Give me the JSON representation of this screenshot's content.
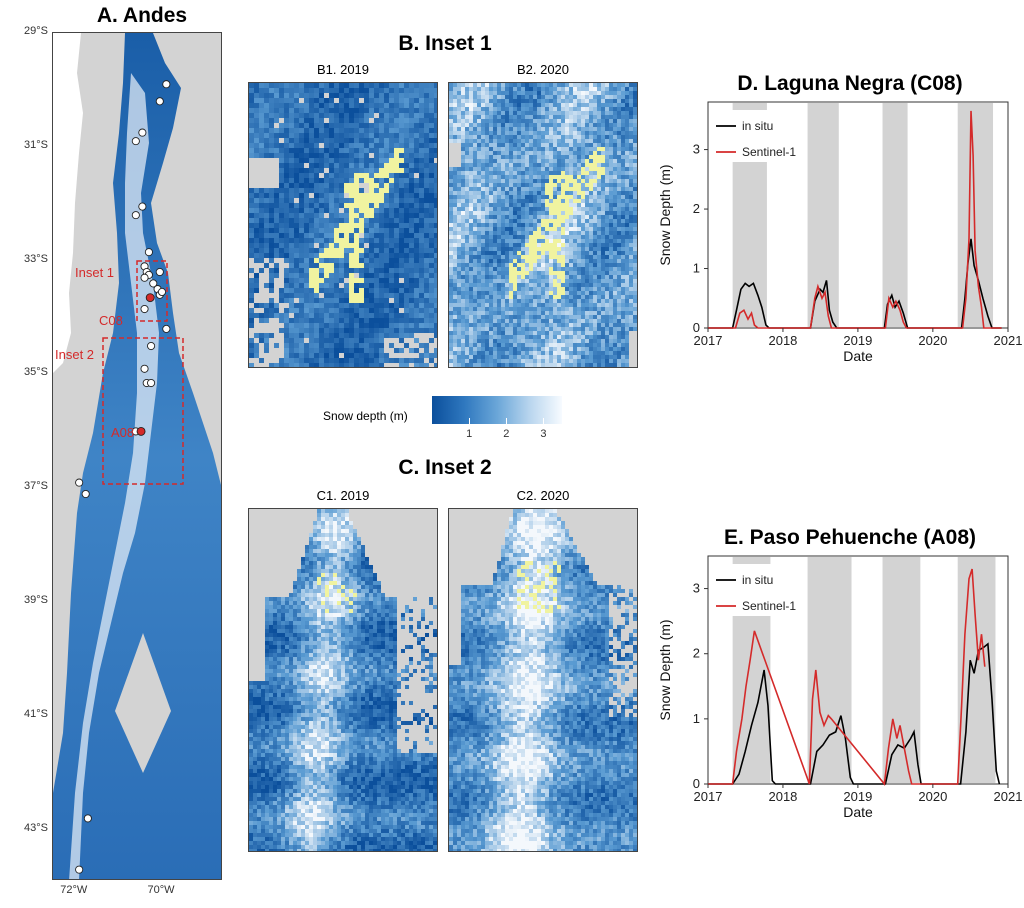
{
  "colors": {
    "snow_low": "#0b4f9c",
    "snow_mid": "#5a9bd2",
    "snow_high": "#f4f8fc",
    "glacier": "#f0f3a0",
    "nodata": "#d3d3d3",
    "insitu": "#000000",
    "sentinel": "#d42a2a",
    "shade": "#d3d3d3",
    "site_red": "#d42a2a",
    "site_white": "#ffffff"
  },
  "panelA": {
    "title": "A. Andes",
    "lat_labels": [
      "29°S",
      "31°S",
      "33°S",
      "35°S",
      "37°S",
      "39°S",
      "41°S",
      "43°S"
    ],
    "lon_labels": [
      "72°W",
      "70°W"
    ],
    "inset1_label": "Inset 1",
    "inset2_label": "Inset 2",
    "c08_label": "C08",
    "a08_label": "A08",
    "sites": [
      {
        "lon": -69.9,
        "lat": -29.9
      },
      {
        "lon": -70.05,
        "lat": -30.2
      },
      {
        "lon": -70.45,
        "lat": -30.75
      },
      {
        "lon": -70.6,
        "lat": -30.9
      },
      {
        "lon": -70.45,
        "lat": -32.05
      },
      {
        "lon": -70.6,
        "lat": -32.2
      },
      {
        "lon": -70.3,
        "lat": -32.85
      },
      {
        "lon": -70.4,
        "lat": -33.1
      },
      {
        "lon": -70.35,
        "lat": -33.2
      },
      {
        "lon": -70.3,
        "lat": -33.25
      },
      {
        "lon": -70.4,
        "lat": -33.3
      },
      {
        "lon": -70.2,
        "lat": -33.4
      },
      {
        "lon": -70.1,
        "lat": -33.5
      },
      {
        "lon": -70.05,
        "lat": -33.6
      },
      {
        "lon": -70.0,
        "lat": -33.55
      },
      {
        "lon": -70.05,
        "lat": -33.2
      },
      {
        "lon": -70.4,
        "lat": -33.85
      },
      {
        "lon": -69.9,
        "lat": -34.2
      },
      {
        "lon": -70.25,
        "lat": -34.5
      },
      {
        "lon": -70.4,
        "lat": -34.9
      },
      {
        "lon": -70.35,
        "lat": -35.15
      },
      {
        "lon": -70.25,
        "lat": -35.15
      },
      {
        "lon": -70.6,
        "lat": -36.0
      },
      {
        "lon": -71.9,
        "lat": -36.9
      },
      {
        "lon": -71.75,
        "lat": -37.1
      },
      {
        "lon": -71.7,
        "lat": -42.8
      },
      {
        "lon": -71.9,
        "lat": -43.7
      }
    ],
    "red_sites": [
      {
        "name": "C08",
        "lon": -70.27,
        "lat": -33.65
      },
      {
        "name": "A08",
        "lon": -70.48,
        "lat": -36.0
      }
    ]
  },
  "panelB": {
    "title": "B. Inset 1",
    "maps": [
      {
        "label": "B1. 2019"
      },
      {
        "label": "B2. 2020"
      }
    ]
  },
  "panelC": {
    "title": "C. Inset 2",
    "maps": [
      {
        "label": "C1. 2019"
      },
      {
        "label": "C2. 2020"
      }
    ]
  },
  "colorbar": {
    "label": "Snow depth (m)",
    "ticks": [
      "1",
      "2",
      "3"
    ],
    "range": [
      0,
      3.5
    ]
  },
  "chart_data": [
    {
      "type": "line",
      "title": "D. Laguna Negra (C08)",
      "xlabel": "Date",
      "ylabel": "Snow Depth (m)",
      "xlim": [
        "2017-01-01",
        "2021-01-01"
      ],
      "ylim": [
        0,
        3.8
      ],
      "x_ticks": [
        "2017",
        "2018",
        "2019",
        "2020",
        "2021"
      ],
      "y_ticks": [
        0,
        1,
        2,
        3
      ],
      "legend": {
        "position": "top-left",
        "entries": [
          "in situ",
          "Sentinel-1"
        ]
      },
      "shaded_periods": [
        [
          "2017-05-01",
          "2017-10-15"
        ],
        [
          "2018-05-01",
          "2018-09-30"
        ],
        [
          "2019-05-01",
          "2019-08-31"
        ],
        [
          "2020-05-01",
          "2020-10-20"
        ]
      ],
      "series": [
        {
          "name": "in situ",
          "points": [
            [
              "2017-01-01",
              0
            ],
            [
              "2017-05-01",
              0
            ],
            [
              "2017-05-20",
              0.3
            ],
            [
              "2017-06-10",
              0.65
            ],
            [
              "2017-07-01",
              0.75
            ],
            [
              "2017-07-20",
              0.7
            ],
            [
              "2017-08-10",
              0.75
            ],
            [
              "2017-09-01",
              0.55
            ],
            [
              "2017-09-20",
              0.35
            ],
            [
              "2017-10-10",
              0.05
            ],
            [
              "2017-10-25",
              0
            ],
            [
              "2018-05-15",
              0
            ],
            [
              "2018-06-05",
              0.45
            ],
            [
              "2018-07-01",
              0.65
            ],
            [
              "2018-07-15",
              0.6
            ],
            [
              "2018-08-01",
              0.8
            ],
            [
              "2018-08-15",
              0.3
            ],
            [
              "2018-09-01",
              0.1
            ],
            [
              "2018-09-20",
              0
            ],
            [
              "2019-05-10",
              0
            ],
            [
              "2019-05-25",
              0.4
            ],
            [
              "2019-06-15",
              0.55
            ],
            [
              "2019-07-01",
              0.35
            ],
            [
              "2019-07-20",
              0.45
            ],
            [
              "2019-08-10",
              0.25
            ],
            [
              "2019-08-31",
              0
            ],
            [
              "2020-05-20",
              0
            ],
            [
              "2020-06-05",
              0.5
            ],
            [
              "2020-06-20",
              1.1
            ],
            [
              "2020-07-05",
              1.5
            ],
            [
              "2020-07-20",
              1.05
            ],
            [
              "2020-08-10",
              0.8
            ],
            [
              "2020-09-01",
              0.5
            ],
            [
              "2020-09-25",
              0.2
            ],
            [
              "2020-10-15",
              0
            ],
            [
              "2020-12-01",
              0
            ]
          ]
        },
        {
          "name": "Sentinel-1",
          "points": [
            [
              "2017-01-01",
              0
            ],
            [
              "2017-05-15",
              0
            ],
            [
              "2017-06-05",
              0.25
            ],
            [
              "2017-06-25",
              0.3
            ],
            [
              "2017-07-15",
              0.15
            ],
            [
              "2017-08-01",
              0.25
            ],
            [
              "2017-08-15",
              0.05
            ],
            [
              "2017-09-01",
              0
            ],
            [
              "2018-05-15",
              0
            ],
            [
              "2018-06-05",
              0.5
            ],
            [
              "2018-06-20",
              0.7
            ],
            [
              "2018-07-10",
              0.5
            ],
            [
              "2018-07-25",
              0.6
            ],
            [
              "2018-08-10",
              0.2
            ],
            [
              "2018-08-25",
              0
            ],
            [
              "2019-05-15",
              0
            ],
            [
              "2019-06-01",
              0.5
            ],
            [
              "2019-06-20",
              0.35
            ],
            [
              "2019-07-05",
              0.45
            ],
            [
              "2019-07-25",
              0.3
            ],
            [
              "2019-08-10",
              0.1
            ],
            [
              "2019-08-25",
              0
            ],
            [
              "2020-05-25",
              0
            ],
            [
              "2020-06-10",
              0.5
            ],
            [
              "2020-06-25",
              1.5
            ],
            [
              "2020-07-05",
              3.65
            ],
            [
              "2020-07-15",
              2.9
            ],
            [
              "2020-07-25",
              1.3
            ],
            [
              "2020-08-10",
              0.7
            ],
            [
              "2020-08-25",
              0.35
            ],
            [
              "2020-09-05",
              0
            ],
            [
              "2020-12-01",
              0
            ]
          ]
        }
      ]
    },
    {
      "type": "line",
      "title": "E. Paso Pehuenche (A08)",
      "xlabel": "Date",
      "ylabel": "Snow Depth (m)",
      "xlim": [
        "2017-01-01",
        "2021-01-01"
      ],
      "ylim": [
        0,
        3.5
      ],
      "x_ticks": [
        "2017",
        "2018",
        "2019",
        "2020",
        "2021"
      ],
      "y_ticks": [
        0,
        1,
        2,
        3
      ],
      "legend": {
        "position": "top-left",
        "entries": [
          "in situ",
          "Sentinel-1"
        ]
      },
      "shaded_periods": [
        [
          "2017-05-01",
          "2017-11-01"
        ],
        [
          "2018-05-01",
          "2018-12-01"
        ],
        [
          "2019-05-01",
          "2019-11-01"
        ],
        [
          "2020-05-01",
          "2020-11-01"
        ]
      ],
      "series": [
        {
          "name": "in situ",
          "points": [
            [
              "2017-01-01",
              0
            ],
            [
              "2017-05-01",
              0
            ],
            [
              "2017-06-01",
              0.15
            ],
            [
              "2017-07-01",
              0.5
            ],
            [
              "2017-08-01",
              0.9
            ],
            [
              "2017-09-01",
              1.25
            ],
            [
              "2017-10-01",
              1.75
            ],
            [
              "2017-10-20",
              1.2
            ],
            [
              "2017-11-10",
              0.05
            ],
            [
              "2017-11-25",
              0
            ],
            [
              "2018-05-15",
              0
            ],
            [
              "2018-06-15",
              0.5
            ],
            [
              "2018-07-15",
              0.6
            ],
            [
              "2018-08-15",
              0.75
            ],
            [
              "2018-09-15",
              0.8
            ],
            [
              "2018-10-10",
              1.05
            ],
            [
              "2018-11-01",
              0.7
            ],
            [
              "2018-11-25",
              0.1
            ],
            [
              "2018-12-10",
              0
            ],
            [
              "2019-05-15",
              0
            ],
            [
              "2019-06-15",
              0.45
            ],
            [
              "2019-07-15",
              0.6
            ],
            [
              "2019-08-15",
              0.55
            ],
            [
              "2019-09-15",
              0.7
            ],
            [
              "2019-10-01",
              0.8
            ],
            [
              "2019-10-20",
              0.3
            ],
            [
              "2019-11-05",
              0
            ],
            [
              "2020-05-15",
              0
            ],
            [
              "2020-06-10",
              0.8
            ],
            [
              "2020-07-01",
              1.9
            ],
            [
              "2020-07-20",
              1.7
            ],
            [
              "2020-08-10",
              2.05
            ],
            [
              "2020-09-05",
              2.1
            ],
            [
              "2020-09-25",
              2.15
            ],
            [
              "2020-10-15",
              1.3
            ],
            [
              "2020-11-05",
              0.2
            ],
            [
              "2020-11-20",
              0
            ]
          ]
        },
        {
          "name": "Sentinel-1",
          "points": [
            [
              "2017-01-01",
              0
            ],
            [
              "2017-05-01",
              0
            ],
            [
              "2017-05-20",
              0.5
            ],
            [
              "2017-06-15",
              1.0
            ],
            [
              "2017-07-05",
              1.5
            ],
            [
              "2017-07-25",
              1.9
            ],
            [
              "2017-08-15",
              2.35
            ],
            [
              "2018-05-10",
              0
            ],
            [
              "2018-05-25",
              1.3
            ],
            [
              "2018-06-10",
              1.75
            ],
            [
              "2018-06-30",
              1.1
            ],
            [
              "2018-07-20",
              0.9
            ],
            [
              "2018-08-10",
              1.05
            ],
            [
              "2018-08-25",
              1.0
            ],
            [
              "2019-05-10",
              0
            ],
            [
              "2019-05-30",
              0.55
            ],
            [
              "2019-06-20",
              1.0
            ],
            [
              "2019-07-10",
              0.7
            ],
            [
              "2019-07-25",
              0.9
            ],
            [
              "2019-08-15",
              0.55
            ],
            [
              "2019-09-05",
              0.2
            ],
            [
              "2019-09-20",
              0
            ],
            [
              "2020-05-01",
              0
            ],
            [
              "2020-05-20",
              1.2
            ],
            [
              "2020-06-05",
              2.3
            ],
            [
              "2020-06-25",
              3.15
            ],
            [
              "2020-07-10",
              3.3
            ],
            [
              "2020-07-25",
              2.6
            ],
            [
              "2020-08-10",
              1.9
            ],
            [
              "2020-08-25",
              2.3
            ],
            [
              "2020-09-10",
              1.8
            ]
          ]
        }
      ]
    }
  ]
}
